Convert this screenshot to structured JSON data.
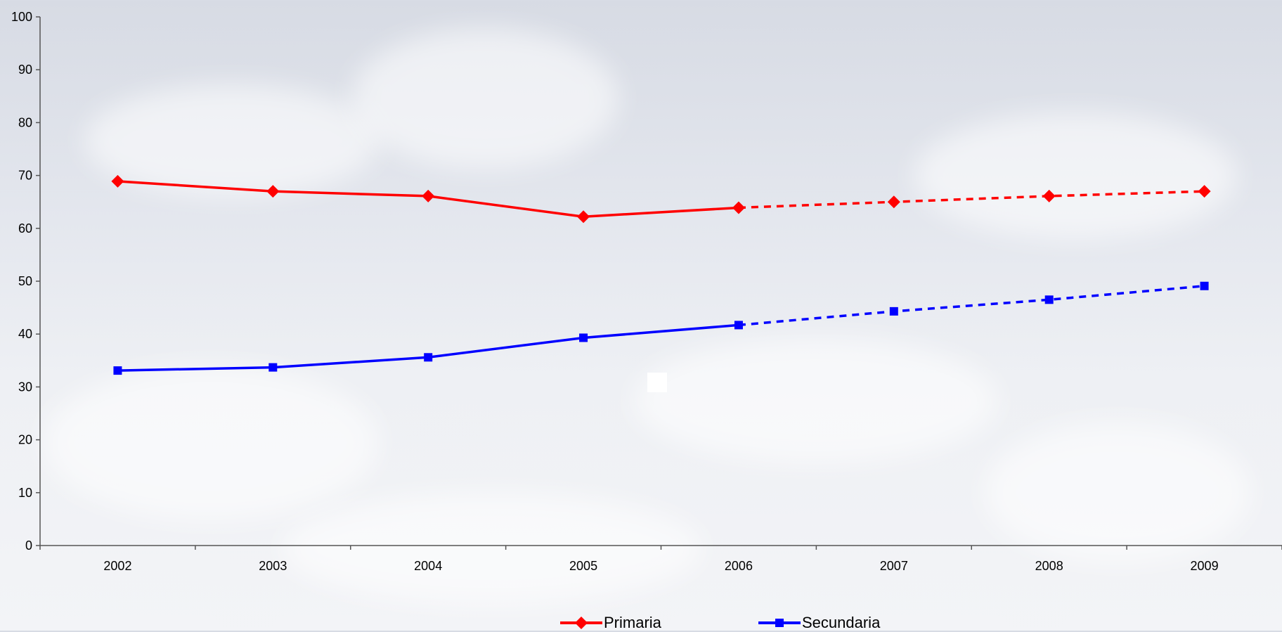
{
  "chart_data": {
    "type": "line",
    "categories": [
      "2002",
      "2003",
      "2004",
      "2005",
      "2006",
      "2007",
      "2008",
      "2009"
    ],
    "ylim": [
      0,
      100
    ],
    "yticks": [
      0,
      10,
      20,
      30,
      40,
      50,
      60,
      70,
      80,
      90,
      100
    ],
    "solid_through_index": 4,
    "series": [
      {
        "name": "Primaria",
        "color": "#ff0000",
        "marker": "diamond",
        "values": [
          68.9,
          67.0,
          66.1,
          62.2,
          63.9,
          65.0,
          66.1,
          67.0
        ]
      },
      {
        "name": "Secundaria",
        "color": "#0000ff",
        "marker": "square",
        "values": [
          33.1,
          33.7,
          35.6,
          39.3,
          41.7,
          44.3,
          46.5,
          49.1
        ]
      }
    ],
    "legend_position": "bottom"
  }
}
